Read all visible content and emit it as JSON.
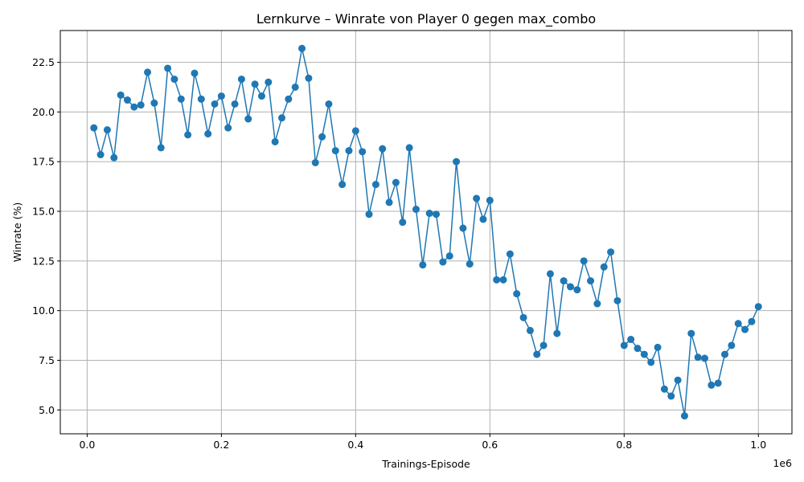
{
  "chart_data": {
    "type": "line",
    "title": "Lernkurve – Winrate von Player 0 gegen max_combo",
    "xlabel": "Trainings-Episode",
    "ylabel": "Winrate (%)",
    "x_offset_label": "1e6",
    "x_scale": 1000000,
    "xlim": [
      -40000,
      1050000
    ],
    "ylim": [
      3.8,
      24.1
    ],
    "x_ticks": [
      0,
      200000,
      400000,
      600000,
      800000,
      1000000
    ],
    "x_tick_labels": [
      "0.0",
      "0.2",
      "0.4",
      "0.6",
      "0.8",
      "1.0"
    ],
    "y_ticks": [
      5.0,
      7.5,
      10.0,
      12.5,
      15.0,
      17.5,
      20.0,
      22.5
    ],
    "y_tick_labels": [
      "5.0",
      "7.5",
      "10.0",
      "12.5",
      "15.0",
      "17.5",
      "20.0",
      "22.5"
    ],
    "grid": true,
    "line_color": "#1f77b4",
    "x": [
      10000,
      20000,
      30000,
      40000,
      50000,
      60000,
      70000,
      80000,
      90000,
      100000,
      110000,
      120000,
      130000,
      140000,
      150000,
      160000,
      170000,
      180000,
      190000,
      200000,
      210000,
      220000,
      230000,
      240000,
      250000,
      260000,
      270000,
      280000,
      290000,
      300000,
      310000,
      320000,
      330000,
      340000,
      350000,
      360000,
      370000,
      380000,
      390000,
      400000,
      410000,
      420000,
      430000,
      440000,
      450000,
      460000,
      470000,
      480000,
      490000,
      500000,
      510000,
      520000,
      530000,
      540000,
      550000,
      560000,
      570000,
      580000,
      590000,
      600000,
      610000,
      620000,
      630000,
      640000,
      650000,
      660000,
      670000,
      680000,
      690000,
      700000,
      710000,
      720000,
      730000,
      740000,
      750000,
      760000,
      770000,
      780000,
      790000,
      800000,
      810000,
      820000,
      830000,
      840000,
      850000,
      860000,
      870000,
      880000,
      890000,
      900000,
      910000,
      920000,
      930000,
      940000,
      950000,
      960000,
      970000,
      980000,
      990000,
      1000000
    ],
    "y": [
      19.2,
      17.85,
      19.1,
      17.7,
      20.85,
      20.6,
      20.25,
      20.35,
      22.0,
      20.45,
      18.2,
      22.2,
      21.65,
      20.65,
      18.85,
      21.95,
      20.65,
      18.9,
      20.4,
      20.8,
      19.2,
      20.4,
      21.65,
      19.65,
      21.4,
      20.8,
      21.5,
      18.5,
      19.7,
      20.65,
      21.25,
      23.2,
      21.7,
      17.45,
      18.75,
      20.4,
      18.05,
      16.35,
      18.05,
      19.05,
      18.0,
      14.85,
      16.35,
      18.15,
      15.45,
      16.45,
      14.45,
      18.2,
      15.1,
      12.3,
      14.9,
      14.85,
      12.45,
      12.75,
      17.5,
      14.15,
      12.35,
      15.65,
      14.6,
      15.55,
      11.55,
      11.55,
      12.85,
      10.85,
      9.65,
      9.0,
      7.8,
      8.25,
      11.85,
      8.85,
      11.5,
      11.2,
      11.05,
      12.5,
      11.5,
      10.35,
      12.2,
      12.95,
      10.5,
      8.25,
      8.55,
      8.1,
      7.8,
      7.4,
      8.15,
      6.05,
      5.7,
      6.5,
      4.7,
      8.85,
      7.65,
      7.6,
      6.25,
      6.35,
      7.8,
      8.25,
      9.35,
      9.05,
      9.45,
      10.2
    ]
  }
}
